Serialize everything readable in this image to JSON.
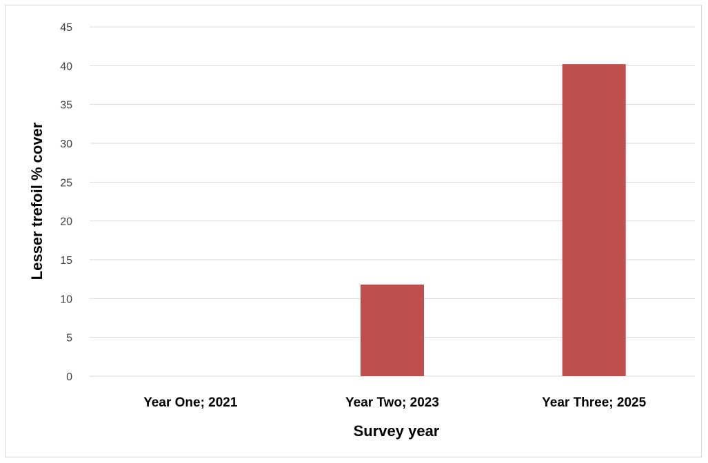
{
  "chart_data": {
    "type": "bar",
    "categories": [
      "Year One; 2021",
      "Year Two; 2023",
      "Year Three; 2025"
    ],
    "values": [
      0,
      11.8,
      40.2
    ],
    "xlabel": "Survey year",
    "ylabel": "Lesser trefoil % cover",
    "ylim": [
      0,
      45
    ],
    "yticks": [
      "0",
      "5",
      "10",
      "15",
      "20",
      "25",
      "30",
      "35",
      "40",
      "45"
    ],
    "grid": true,
    "legend": "none",
    "bar_color": "#c0504d",
    "grid_color": "#d9d9d9"
  }
}
